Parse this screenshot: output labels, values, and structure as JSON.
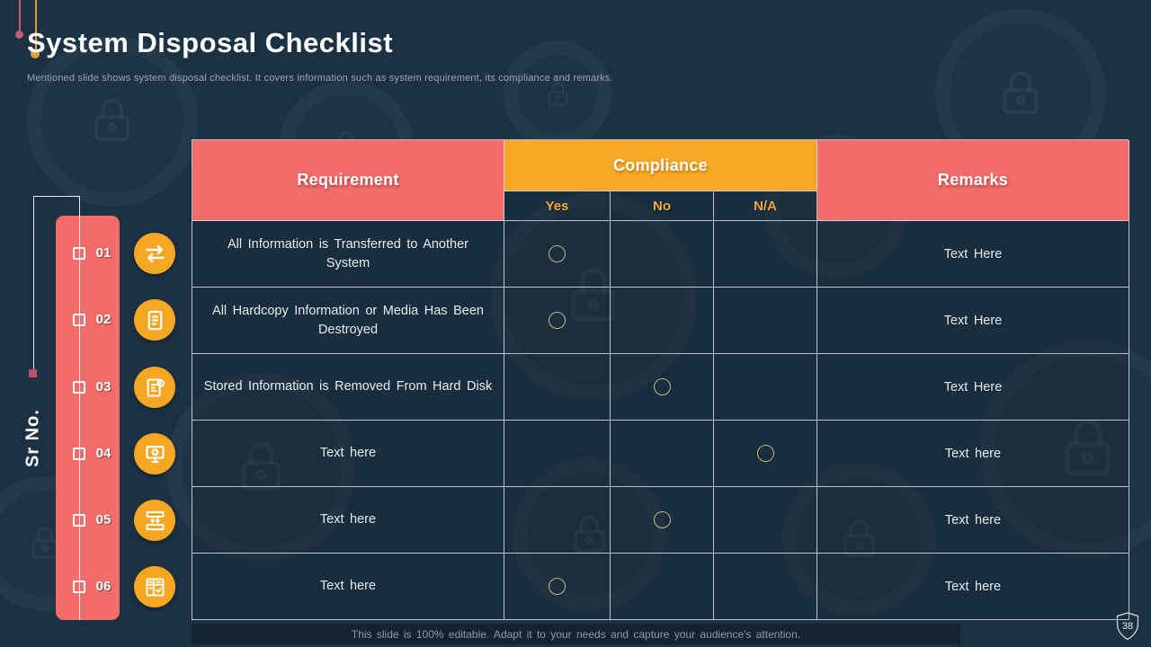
{
  "slide": {
    "title": "System Disposal Checklist",
    "subtitle": "Mentioned slide shows system disposal checklist. It covers information such as system requirement, its compliance and remarks.",
    "sr_no_label": "Sr No.",
    "footer_note": "This slide is 100% editable. Adapt it to your needs and capture your audience's attention.",
    "page_number": "38"
  },
  "table": {
    "headers": {
      "requirement": "Requirement",
      "compliance": "Compliance",
      "remarks": "Remarks",
      "compliance_options": [
        "Yes",
        "No",
        "N/A"
      ]
    },
    "rows": [
      {
        "sr": "01",
        "icon": "transfer-arrows-icon",
        "requirement": "All Information is Transferred to Another\nSystem",
        "compliance": "Yes",
        "remarks": "Text Here"
      },
      {
        "sr": "02",
        "icon": "document-icon",
        "requirement": "All Hardcopy Information or Media Has Been\nDestroyed",
        "compliance": "Yes",
        "remarks": "Text Here"
      },
      {
        "sr": "03",
        "icon": "financial-report-icon",
        "requirement": "Stored Information is Removed From Hard Disk",
        "compliance": "No",
        "remarks": "Text Here"
      },
      {
        "sr": "04",
        "icon": "monitor-gear-icon",
        "requirement": "Text here",
        "compliance": "N/A",
        "remarks": "Text here"
      },
      {
        "sr": "05",
        "icon": "server-transfer-icon",
        "requirement": "Text here",
        "compliance": "No",
        "remarks": "Text here"
      },
      {
        "sr": "06",
        "icon": "checklist-icon",
        "requirement": "Text here",
        "compliance": "Yes",
        "remarks": "Text here"
      }
    ]
  },
  "colors": {
    "background": "#1C3243",
    "coral_header": "#F16C6B",
    "orange_header": "#F9A826",
    "amber_text": "#F0A838",
    "mark_circle_outline": "#C9B77D",
    "icon_circle": "#F5A623",
    "rail_bar": "#F16C6B"
  }
}
